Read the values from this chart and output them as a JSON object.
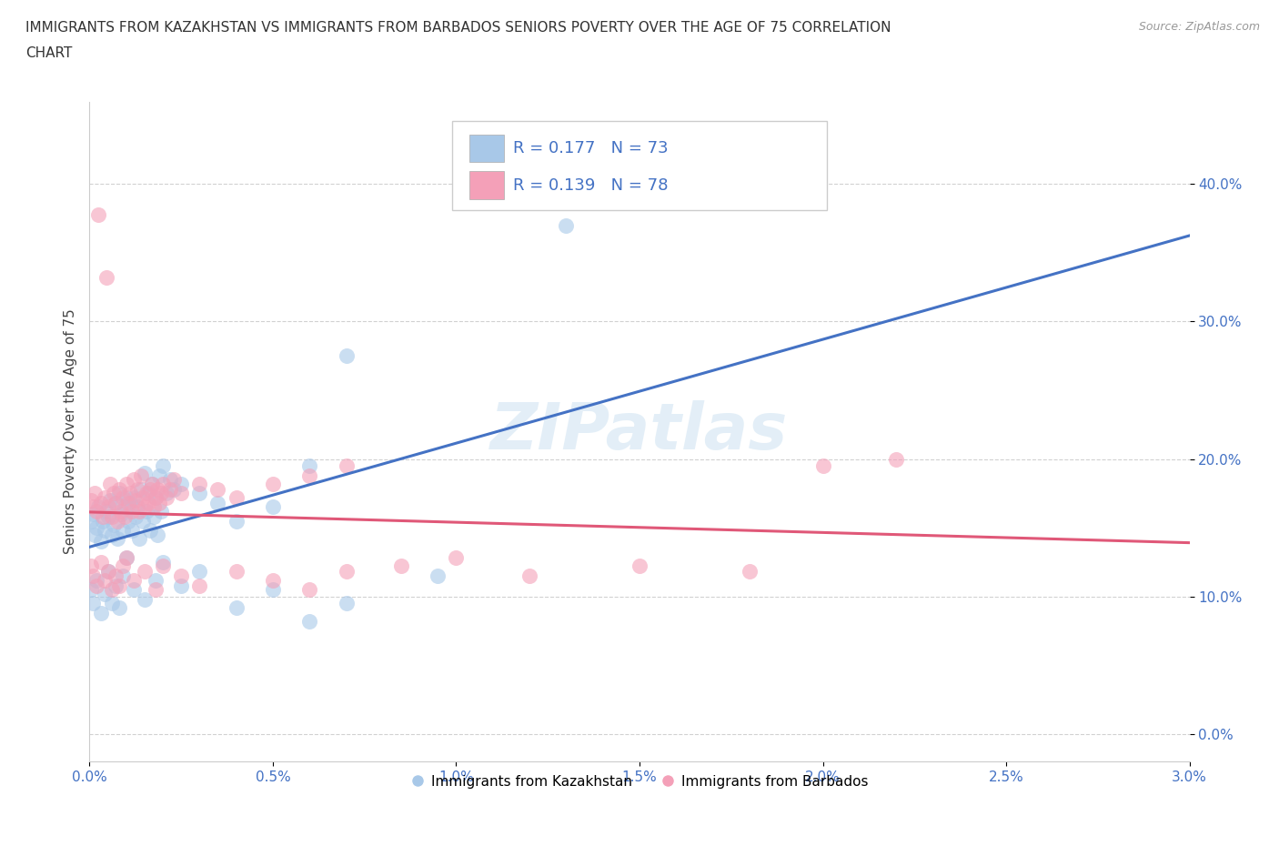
{
  "title_line1": "IMMIGRANTS FROM KAZAKHSTAN VS IMMIGRANTS FROM BARBADOS SENIORS POVERTY OVER THE AGE OF 75 CORRELATION",
  "title_line2": "CHART",
  "source": "Source: ZipAtlas.com",
  "ylabel": "Seniors Poverty Over the Age of 75",
  "xlim": [
    0.0,
    0.03
  ],
  "ylim": [
    -0.02,
    0.46
  ],
  "xticks": [
    0.0,
    0.005,
    0.01,
    0.015,
    0.02,
    0.025,
    0.03
  ],
  "yticks": [
    0.0,
    0.1,
    0.2,
    0.3,
    0.4
  ],
  "grid_color": "#cccccc",
  "background_color": "#ffffff",
  "kazakhstan_color": "#a8c8e8",
  "barbados_color": "#f4a0b8",
  "kazakhstan_line_color": "#4472c4",
  "barbados_line_color": "#e05878",
  "tick_color": "#4472c4",
  "R_kazakhstan": 0.177,
  "N_kazakhstan": 73,
  "R_barbados": 0.139,
  "N_barbados": 78,
  "legend_label_kaz": "Immigrants from Kazakhstan",
  "legend_label_bar": "Immigrants from Barbados",
  "kaz_x": [
    5e-05,
    0.0001,
    0.00015,
    0.0002,
    0.00025,
    0.0003,
    0.00035,
    0.0004,
    0.00045,
    0.0005,
    0.00055,
    0.0006,
    0.00065,
    0.0007,
    0.00075,
    0.0008,
    0.00085,
    0.0009,
    0.00095,
    0.001,
    0.00105,
    0.0011,
    0.00115,
    0.0012,
    0.00125,
    0.0013,
    0.00135,
    0.0014,
    0.00145,
    0.0015,
    0.00155,
    0.0016,
    0.00165,
    0.0017,
    0.00175,
    0.0018,
    0.00185,
    0.0019,
    0.00195,
    0.002,
    0.0021,
    0.0022,
    0.0023,
    0.0025,
    0.003,
    0.0035,
    0.004,
    0.005,
    0.006,
    0.007,
    5e-05,
    0.0001,
    0.0002,
    0.0003,
    0.0004,
    0.0005,
    0.0006,
    0.0007,
    0.0008,
    0.0009,
    0.001,
    0.0012,
    0.0015,
    0.0018,
    0.002,
    0.0025,
    0.003,
    0.004,
    0.005,
    0.006,
    0.007,
    0.0095,
    0.013
  ],
  "kaz_y": [
    0.155,
    0.16,
    0.145,
    0.15,
    0.165,
    0.14,
    0.155,
    0.148,
    0.162,
    0.158,
    0.17,
    0.145,
    0.152,
    0.168,
    0.142,
    0.175,
    0.16,
    0.148,
    0.165,
    0.172,
    0.155,
    0.168,
    0.148,
    0.172,
    0.158,
    0.165,
    0.142,
    0.178,
    0.155,
    0.19,
    0.162,
    0.175,
    0.148,
    0.182,
    0.158,
    0.172,
    0.145,
    0.188,
    0.162,
    0.195,
    0.175,
    0.185,
    0.178,
    0.182,
    0.175,
    0.168,
    0.155,
    0.165,
    0.195,
    0.275,
    0.105,
    0.095,
    0.112,
    0.088,
    0.102,
    0.118,
    0.095,
    0.108,
    0.092,
    0.115,
    0.128,
    0.105,
    0.098,
    0.112,
    0.125,
    0.108,
    0.118,
    0.092,
    0.105,
    0.082,
    0.095,
    0.115,
    0.37
  ],
  "bar_x": [
    5e-05,
    0.0001,
    0.00015,
    0.0002,
    0.00025,
    0.0003,
    0.00035,
    0.0004,
    0.00045,
    0.0005,
    0.00055,
    0.0006,
    0.00065,
    0.0007,
    0.00075,
    0.0008,
    0.00085,
    0.0009,
    0.00095,
    0.001,
    0.00105,
    0.0011,
    0.00115,
    0.0012,
    0.00125,
    0.0013,
    0.00135,
    0.0014,
    0.00145,
    0.0015,
    0.00155,
    0.0016,
    0.00165,
    0.0017,
    0.00175,
    0.0018,
    0.00185,
    0.0019,
    0.00195,
    0.002,
    0.0021,
    0.0022,
    0.0023,
    0.0025,
    0.003,
    0.0035,
    0.004,
    0.005,
    0.006,
    0.007,
    5e-05,
    0.0001,
    0.0002,
    0.0003,
    0.0004,
    0.0005,
    0.0006,
    0.0007,
    0.0008,
    0.0009,
    0.001,
    0.0012,
    0.0015,
    0.0018,
    0.002,
    0.0025,
    0.003,
    0.004,
    0.005,
    0.006,
    0.007,
    0.0085,
    0.01,
    0.012,
    0.015,
    0.018,
    0.02,
    0.022
  ],
  "bar_y": [
    0.17,
    0.165,
    0.175,
    0.162,
    0.378,
    0.168,
    0.158,
    0.172,
    0.332,
    0.165,
    0.182,
    0.158,
    0.175,
    0.168,
    0.155,
    0.178,
    0.162,
    0.172,
    0.158,
    0.182,
    0.168,
    0.175,
    0.162,
    0.185,
    0.17,
    0.178,
    0.162,
    0.188,
    0.172,
    0.165,
    0.175,
    0.168,
    0.178,
    0.182,
    0.165,
    0.172,
    0.178,
    0.168,
    0.175,
    0.182,
    0.172,
    0.178,
    0.185,
    0.175,
    0.182,
    0.178,
    0.172,
    0.182,
    0.188,
    0.195,
    0.122,
    0.115,
    0.108,
    0.125,
    0.112,
    0.118,
    0.105,
    0.115,
    0.108,
    0.122,
    0.128,
    0.112,
    0.118,
    0.105,
    0.122,
    0.115,
    0.108,
    0.118,
    0.112,
    0.105,
    0.118,
    0.122,
    0.128,
    0.115,
    0.122,
    0.118,
    0.195,
    0.2
  ]
}
